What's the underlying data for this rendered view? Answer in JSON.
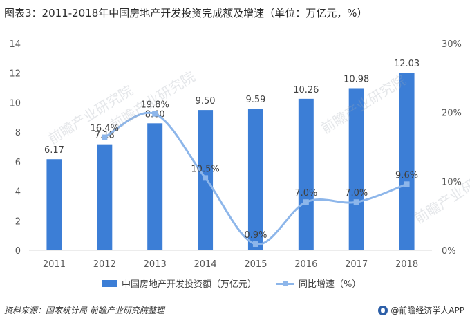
{
  "title": "图表3：2011-2018年中国房地产开发投资完成额及增速（单位：万亿元，%）",
  "chart_data": {
    "type": "bar",
    "categories": [
      "2011",
      "2012",
      "2013",
      "2014",
      "2015",
      "2016",
      "2017",
      "2018"
    ],
    "series": [
      {
        "name": "中国房地产开发投资额（万亿元）",
        "type": "bar",
        "axis": "left",
        "values": [
          6.17,
          7.18,
          8.6,
          9.5,
          9.59,
          10.26,
          10.98,
          12.03
        ],
        "labels": [
          "6.17",
          "7.18",
          "8.60",
          "9.50",
          "9.59",
          "10.26",
          "10.98",
          "12.03"
        ]
      },
      {
        "name": "同比增速（%）",
        "type": "line",
        "axis": "right",
        "values": [
          null,
          16.4,
          19.8,
          10.5,
          0.9,
          7.0,
          7.0,
          9.6
        ],
        "labels": [
          "",
          "16.4%",
          "19.8%",
          "10.5%",
          "0.9%",
          "7.0%",
          "7.0%",
          "9.6%"
        ]
      }
    ],
    "left_axis": {
      "ylim": [
        0,
        14
      ],
      "ticks": [
        "0",
        "2",
        "4",
        "6",
        "8",
        "10",
        "12",
        "14"
      ]
    },
    "right_axis": {
      "ylim": [
        0,
        30
      ],
      "ticks": [
        "0%",
        "10%",
        "20%",
        "30%"
      ]
    },
    "grid": false,
    "legend": "bottom",
    "colors": {
      "bar": "#3c7ed6",
      "line": "#8db6ea"
    }
  },
  "legend": {
    "bar_label": "中国房地产开发投资额（万亿元）",
    "line_label": "同比增速（%）"
  },
  "footer": {
    "source": "资料来源：国家统计局 前瞻产业研究院整理",
    "brand": "@前瞻经济学人APP"
  },
  "watermark": "前瞻产业研究院"
}
